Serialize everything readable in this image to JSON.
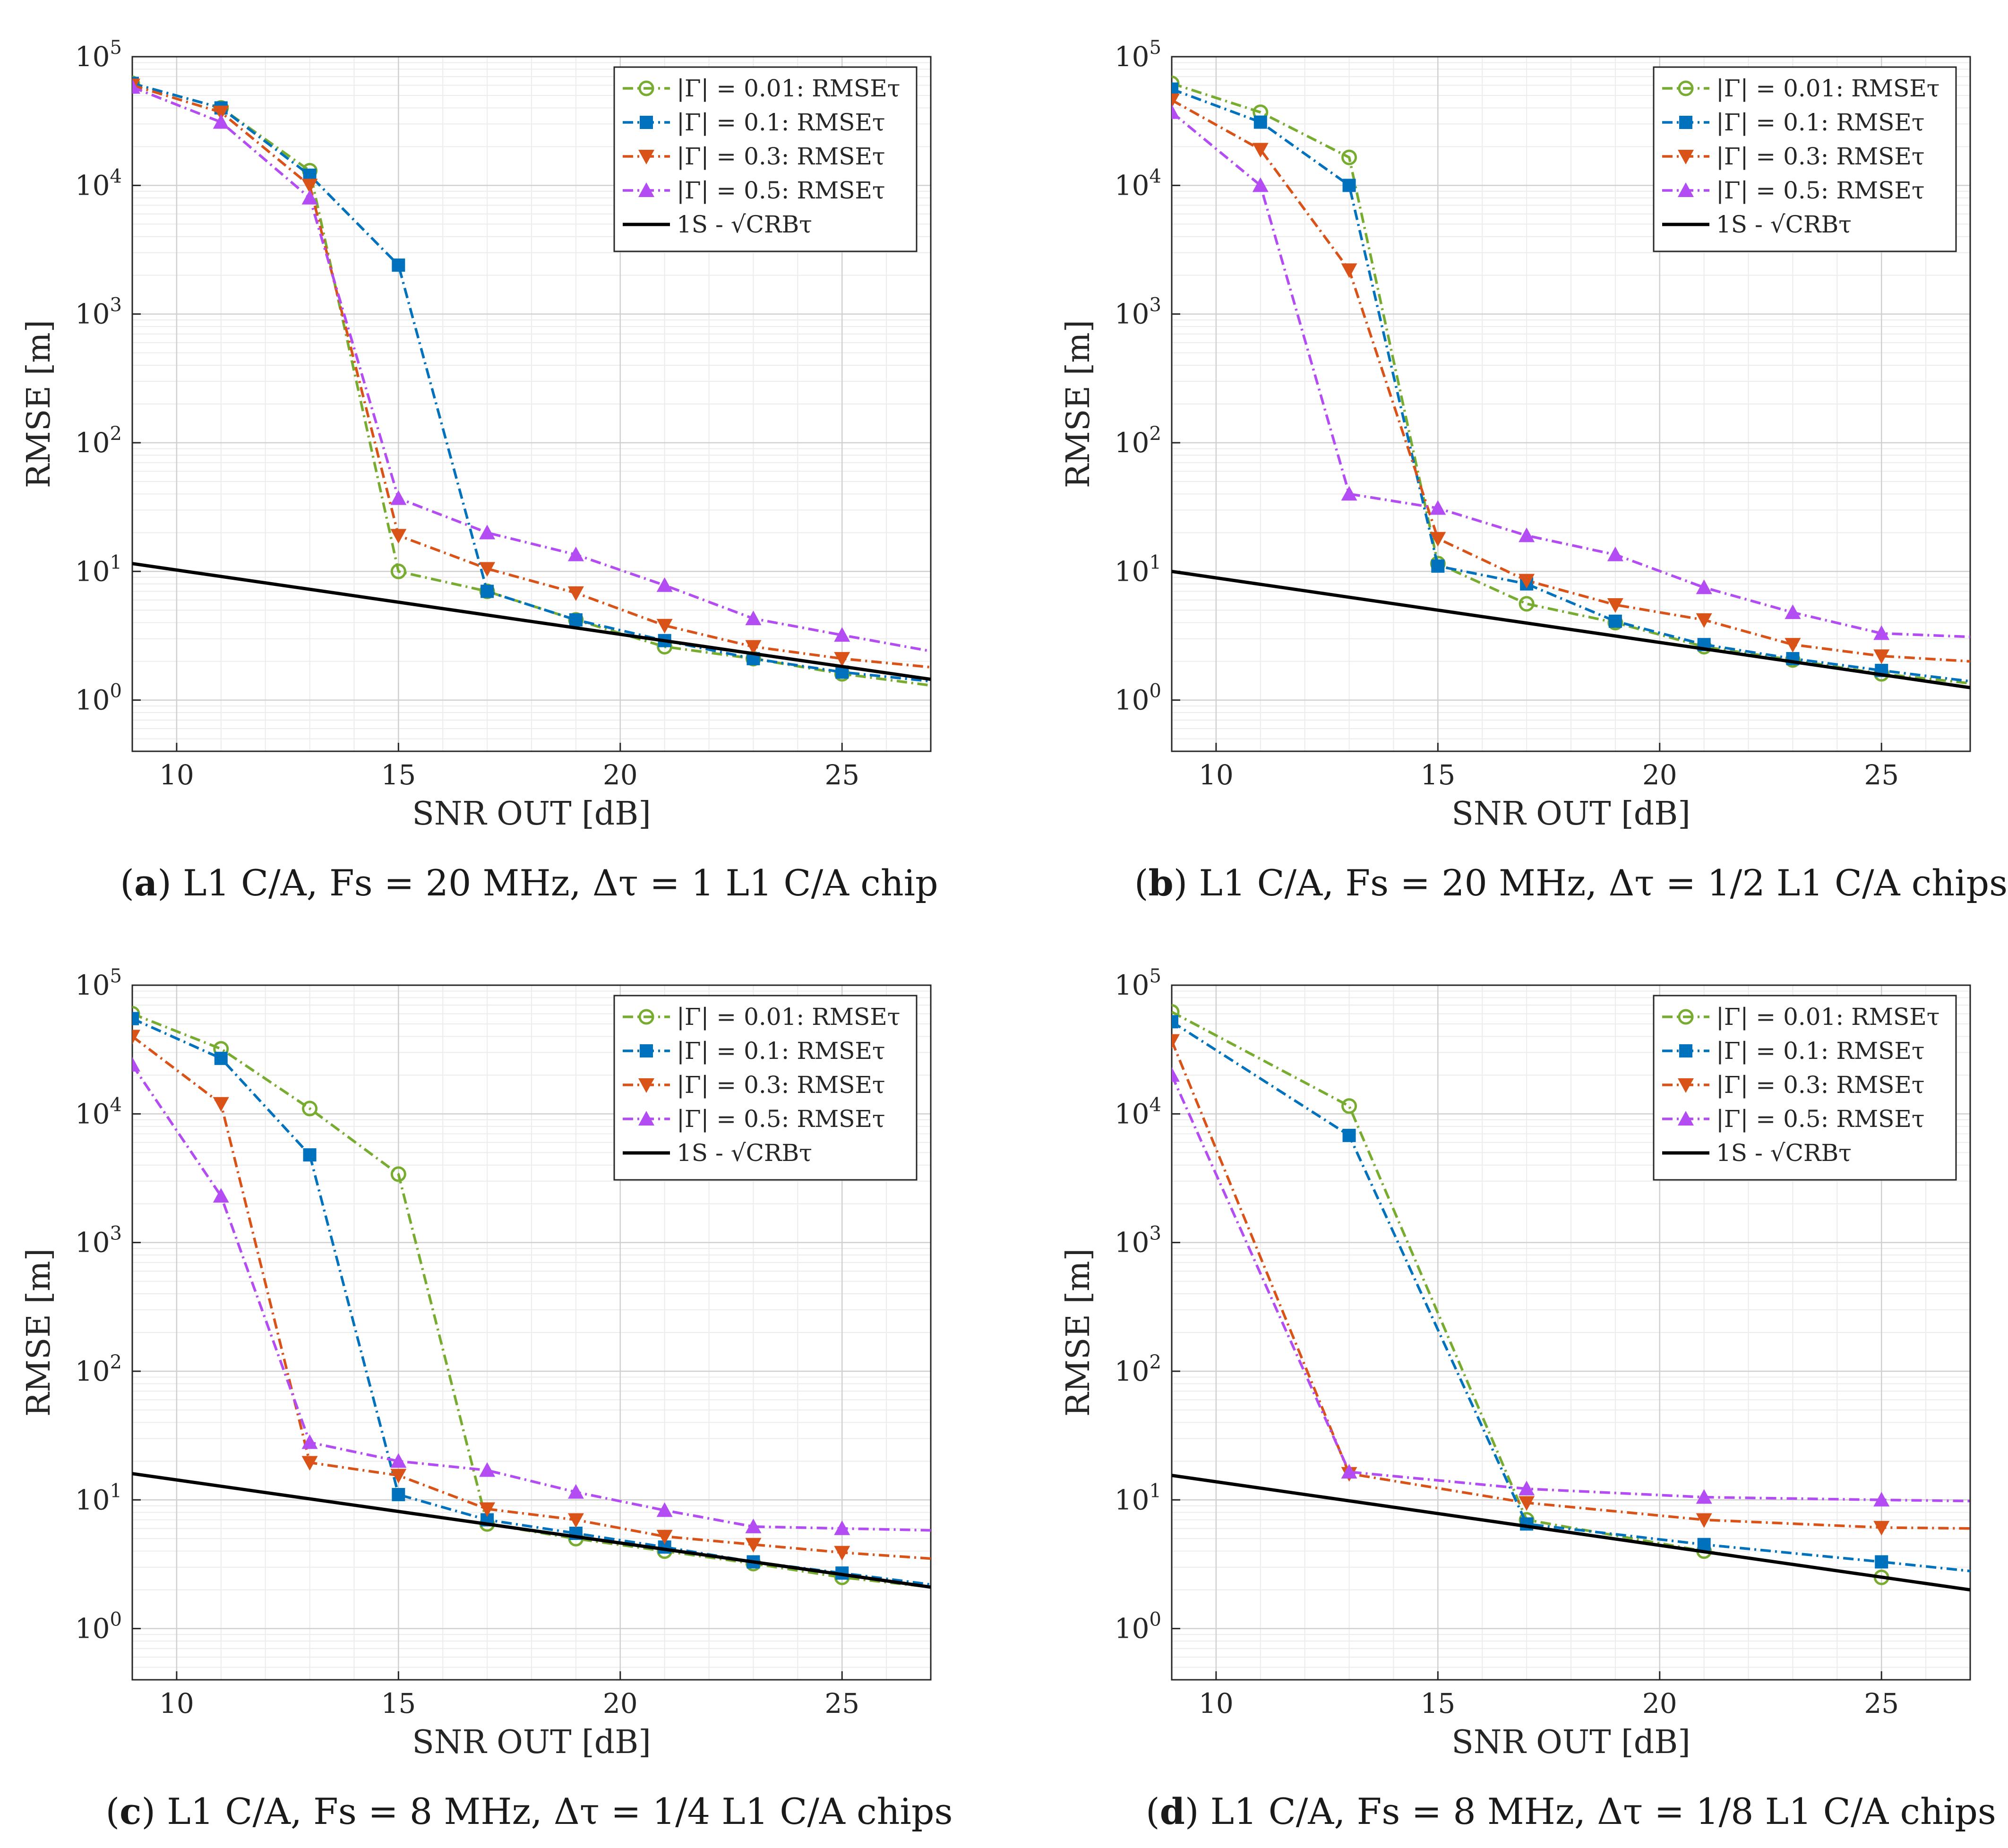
{
  "figure": {
    "legend_labels": [
      "|Γ| = 0.01:  RMSEτ",
      "|Γ| = 0.1:  RMSEτ",
      "|Γ| = 0.3:  RMSEτ",
      "|Γ| = 0.5:  RMSEτ",
      "1S - √CRBτ"
    ],
    "series_colors": [
      "#77AC30",
      "#0072BD",
      "#D95319",
      "#B34CF2",
      "#000000"
    ],
    "series_markers": [
      "circle",
      "square",
      "triangle-down",
      "triangle-up",
      "none"
    ]
  },
  "chart_data": [
    {
      "type": "line",
      "panel": "(a)",
      "caption_label": "a",
      "caption_text": "L1 C/A, Fs = 20 MHz, Δτ = 1 L1 C/A chip",
      "xlabel": "SNR OUT [dB]",
      "ylabel": "RMSE [m]",
      "yscale": "log",
      "xlim": [
        9,
        27
      ],
      "ylim": [
        0.4,
        100000
      ],
      "xticks": [
        10,
        15,
        20,
        25
      ],
      "yticks": [
        1,
        10,
        100,
        1000,
        10000,
        100000
      ],
      "ytick_labels": [
        "10^0",
        "10^1",
        "10^2",
        "10^3",
        "10^4",
        "10^5"
      ],
      "grid": true,
      "legend_position": "top-right",
      "series": [
        {
          "name": "|Γ| = 0.01:  RMSEτ",
          "x": [
            9,
            11,
            13,
            15,
            17,
            19,
            21,
            23,
            25,
            27
          ],
          "y": [
            62000,
            40000,
            13000,
            10,
            7,
            4.2,
            2.6,
            2.1,
            1.6,
            1.3
          ]
        },
        {
          "name": "|Γ| = 0.1:  RMSEτ",
          "x": [
            9,
            11,
            13,
            15,
            17,
            19,
            21,
            23,
            25,
            27
          ],
          "y": [
            62000,
            40000,
            12000,
            2400,
            7,
            4.2,
            2.9,
            2.1,
            1.65,
            1.4
          ]
        },
        {
          "name": "|Γ| = 0.3:  RMSEτ",
          "x": [
            9,
            11,
            13,
            15,
            17,
            19,
            21,
            23,
            25,
            27
          ],
          "y": [
            60000,
            37000,
            10000,
            19,
            10.5,
            6.8,
            3.8,
            2.6,
            2.1,
            1.8
          ]
        },
        {
          "name": "|Γ| = 0.5:  RMSEτ",
          "x": [
            9,
            11,
            13,
            15,
            17,
            19,
            21,
            23,
            25,
            27
          ],
          "y": [
            58000,
            31000,
            8000,
            37,
            20,
            13.5,
            7.8,
            4.3,
            3.2,
            2.4
          ]
        },
        {
          "name": "1S - √CRBτ",
          "x": [
            9,
            27
          ],
          "y": [
            11.5,
            1.45
          ]
        }
      ]
    },
    {
      "type": "line",
      "panel": "(b)",
      "caption_label": "b",
      "caption_text": "L1 C/A, Fs = 20 MHz, Δτ = 1/2 L1 C/A chips",
      "xlabel": "SNR OUT [dB]",
      "ylabel": "RMSE [m]",
      "yscale": "log",
      "xlim": [
        9,
        27
      ],
      "ylim": [
        0.4,
        100000
      ],
      "xticks": [
        10,
        15,
        20,
        25
      ],
      "yticks": [
        1,
        10,
        100,
        1000,
        10000,
        100000
      ],
      "ytick_labels": [
        "10^0",
        "10^1",
        "10^2",
        "10^3",
        "10^4",
        "10^5"
      ],
      "grid": true,
      "legend_position": "top-right",
      "series": [
        {
          "name": "|Γ| = 0.01:  RMSEτ",
          "x": [
            9,
            11,
            13,
            15,
            17,
            19,
            21,
            23,
            25,
            27
          ],
          "y": [
            62000,
            37000,
            16500,
            11.5,
            5.6,
            4,
            2.6,
            2.05,
            1.6,
            1.35
          ]
        },
        {
          "name": "|Γ| = 0.1:  RMSEτ",
          "x": [
            9,
            11,
            13,
            15,
            17,
            19,
            21,
            23,
            25,
            27
          ],
          "y": [
            56000,
            31000,
            10000,
            11,
            8,
            4.1,
            2.7,
            2.1,
            1.7,
            1.4
          ]
        },
        {
          "name": "|Γ| = 0.3:  RMSEτ",
          "x": [
            9,
            11,
            13,
            15,
            17,
            19,
            21,
            23,
            25,
            27
          ],
          "y": [
            46000,
            19000,
            2200,
            18,
            8.5,
            5.5,
            4.2,
            2.7,
            2.2,
            2
          ]
        },
        {
          "name": "|Γ| = 0.5:  RMSEτ",
          "x": [
            9,
            11,
            13,
            15,
            17,
            19,
            21,
            23,
            25,
            27
          ],
          "y": [
            37000,
            10000,
            40,
            31,
            19,
            13.5,
            7.5,
            4.8,
            3.3,
            3.1
          ]
        },
        {
          "name": "1S - √CRBτ",
          "x": [
            9,
            27
          ],
          "y": [
            10,
            1.25
          ]
        }
      ]
    },
    {
      "type": "line",
      "panel": "(c)",
      "caption_label": "c",
      "caption_text": "L1 C/A, Fs = 8 MHz, Δτ = 1/4 L1 C/A chips",
      "xlabel": "SNR OUT [dB]",
      "ylabel": "RMSE [m]",
      "yscale": "log",
      "xlim": [
        9,
        27
      ],
      "ylim": [
        0.4,
        100000
      ],
      "xticks": [
        10,
        15,
        20,
        25
      ],
      "yticks": [
        1,
        10,
        100,
        1000,
        10000,
        100000
      ],
      "ytick_labels": [
        "10^0",
        "10^1",
        "10^2",
        "10^3",
        "10^4",
        "10^5"
      ],
      "grid": true,
      "legend_position": "top-right",
      "series": [
        {
          "name": "|Γ| = 0.01:  RMSEτ",
          "x": [
            9,
            11,
            13,
            15,
            17,
            19,
            21,
            23,
            25,
            27
          ],
          "y": [
            60000,
            32000,
            11000,
            3400,
            6.5,
            5,
            4,
            3.2,
            2.5,
            2.1
          ]
        },
        {
          "name": "|Γ| = 0.1:  RMSEτ",
          "x": [
            9,
            11,
            13,
            15,
            17,
            19,
            21,
            23,
            25,
            27
          ],
          "y": [
            55000,
            27000,
            4800,
            11,
            7,
            5.5,
            4.3,
            3.3,
            2.7,
            2.2
          ]
        },
        {
          "name": "|Γ| = 0.3:  RMSEτ",
          "x": [
            9,
            11,
            13,
            15,
            17,
            19,
            21,
            23,
            25,
            27
          ],
          "y": [
            40000,
            12000,
            19.5,
            15.5,
            8.5,
            7,
            5.2,
            4.5,
            3.9,
            3.5
          ]
        },
        {
          "name": "|Γ| = 0.5:  RMSEτ",
          "x": [
            9,
            11,
            13,
            15,
            17,
            19,
            21,
            23,
            25,
            27
          ],
          "y": [
            24000,
            2300,
            28,
            20,
            17,
            11.5,
            8.3,
            6.2,
            6,
            5.8
          ]
        },
        {
          "name": "1S - √CRBτ",
          "x": [
            9,
            27
          ],
          "y": [
            16,
            2.1
          ]
        }
      ]
    },
    {
      "type": "line",
      "panel": "(d)",
      "caption_label": "d",
      "caption_text": "L1 C/A, Fs = 8 MHz, Δτ = 1/8 L1 C/A chips",
      "xlabel": "SNR OUT [dB]",
      "ylabel": "RMSE [m]",
      "yscale": "log",
      "xlim": [
        9,
        27
      ],
      "ylim": [
        0.4,
        100000
      ],
      "xticks": [
        10,
        15,
        20,
        25
      ],
      "yticks": [
        1,
        10,
        100,
        1000,
        10000,
        100000
      ],
      "ytick_labels": [
        "10^0",
        "10^1",
        "10^2",
        "10^3",
        "10^4",
        "10^5"
      ],
      "grid": true,
      "legend_position": "top-right",
      "series": [
        {
          "name": "|Γ| = 0.01:  RMSEτ",
          "x": [
            9,
            13,
            17,
            21,
            25,
            27
          ],
          "y": [
            62000,
            11500,
            7,
            4,
            2.5,
            2
          ]
        },
        {
          "name": "|Γ| = 0.1:  RMSEτ",
          "x": [
            9,
            13,
            17,
            21,
            25,
            27
          ],
          "y": [
            52000,
            6800,
            6.5,
            4.5,
            3.3,
            2.8
          ]
        },
        {
          "name": "|Γ| = 0.3:  RMSEτ",
          "x": [
            9,
            13,
            17,
            21,
            25,
            27
          ],
          "y": [
            37000,
            16,
            9.5,
            7,
            6.1,
            6
          ]
        },
        {
          "name": "|Γ| = 0.5:  RMSEτ",
          "x": [
            9,
            13,
            17,
            21,
            25,
            27
          ],
          "y": [
            20000,
            16.5,
            12.2,
            10.5,
            10,
            9.8
          ]
        },
        {
          "name": "1S - √CRBτ",
          "x": [
            9,
            27
          ],
          "y": [
            15.5,
            2
          ]
        }
      ]
    }
  ]
}
